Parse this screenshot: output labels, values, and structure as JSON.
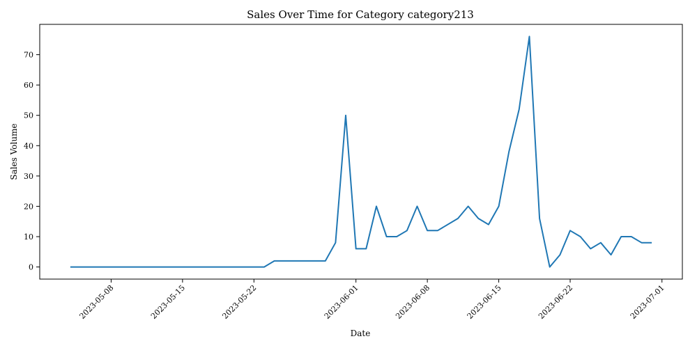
{
  "chart_data": {
    "type": "line",
    "title": "Sales Over Time for Category category213",
    "xlabel": "Date",
    "ylabel": "Sales Volume",
    "x_ticks": [
      "2023-05-08",
      "2023-05-15",
      "2023-05-22",
      "2023-06-01",
      "2023-06-08",
      "2023-06-15",
      "2023-06-22",
      "2023-07-01"
    ],
    "y_ticks": [
      0,
      10,
      20,
      30,
      40,
      50,
      60,
      70
    ],
    "xlim": [
      "2023-05-01",
      "2023-07-03"
    ],
    "ylim": [
      -4,
      80
    ],
    "grid": false,
    "series": [
      {
        "color": "#1f77b4",
        "points": [
          [
            "2023-05-04",
            0
          ],
          [
            "2023-05-23",
            0
          ],
          [
            "2023-05-24",
            2
          ],
          [
            "2023-05-29",
            2
          ],
          [
            "2023-05-30",
            8
          ],
          [
            "2023-05-31",
            50
          ],
          [
            "2023-06-01",
            6
          ],
          [
            "2023-06-02",
            6
          ],
          [
            "2023-06-03",
            20
          ],
          [
            "2023-06-04",
            10
          ],
          [
            "2023-06-05",
            10
          ],
          [
            "2023-06-06",
            12
          ],
          [
            "2023-06-07",
            20
          ],
          [
            "2023-06-08",
            12
          ],
          [
            "2023-06-09",
            12
          ],
          [
            "2023-06-11",
            16
          ],
          [
            "2023-06-12",
            20
          ],
          [
            "2023-06-13",
            16
          ],
          [
            "2023-06-14",
            14
          ],
          [
            "2023-06-15",
            20
          ],
          [
            "2023-06-16",
            38
          ],
          [
            "2023-06-17",
            52
          ],
          [
            "2023-06-18",
            76
          ],
          [
            "2023-06-19",
            16
          ],
          [
            "2023-06-20",
            0
          ],
          [
            "2023-06-21",
            4
          ],
          [
            "2023-06-22",
            12
          ],
          [
            "2023-06-23",
            10
          ],
          [
            "2023-06-24",
            6
          ],
          [
            "2023-06-25",
            8
          ],
          [
            "2023-06-26",
            4
          ],
          [
            "2023-06-27",
            10
          ],
          [
            "2023-06-28",
            10
          ],
          [
            "2023-06-29",
            8
          ],
          [
            "2023-06-30",
            8
          ]
        ]
      }
    ]
  }
}
